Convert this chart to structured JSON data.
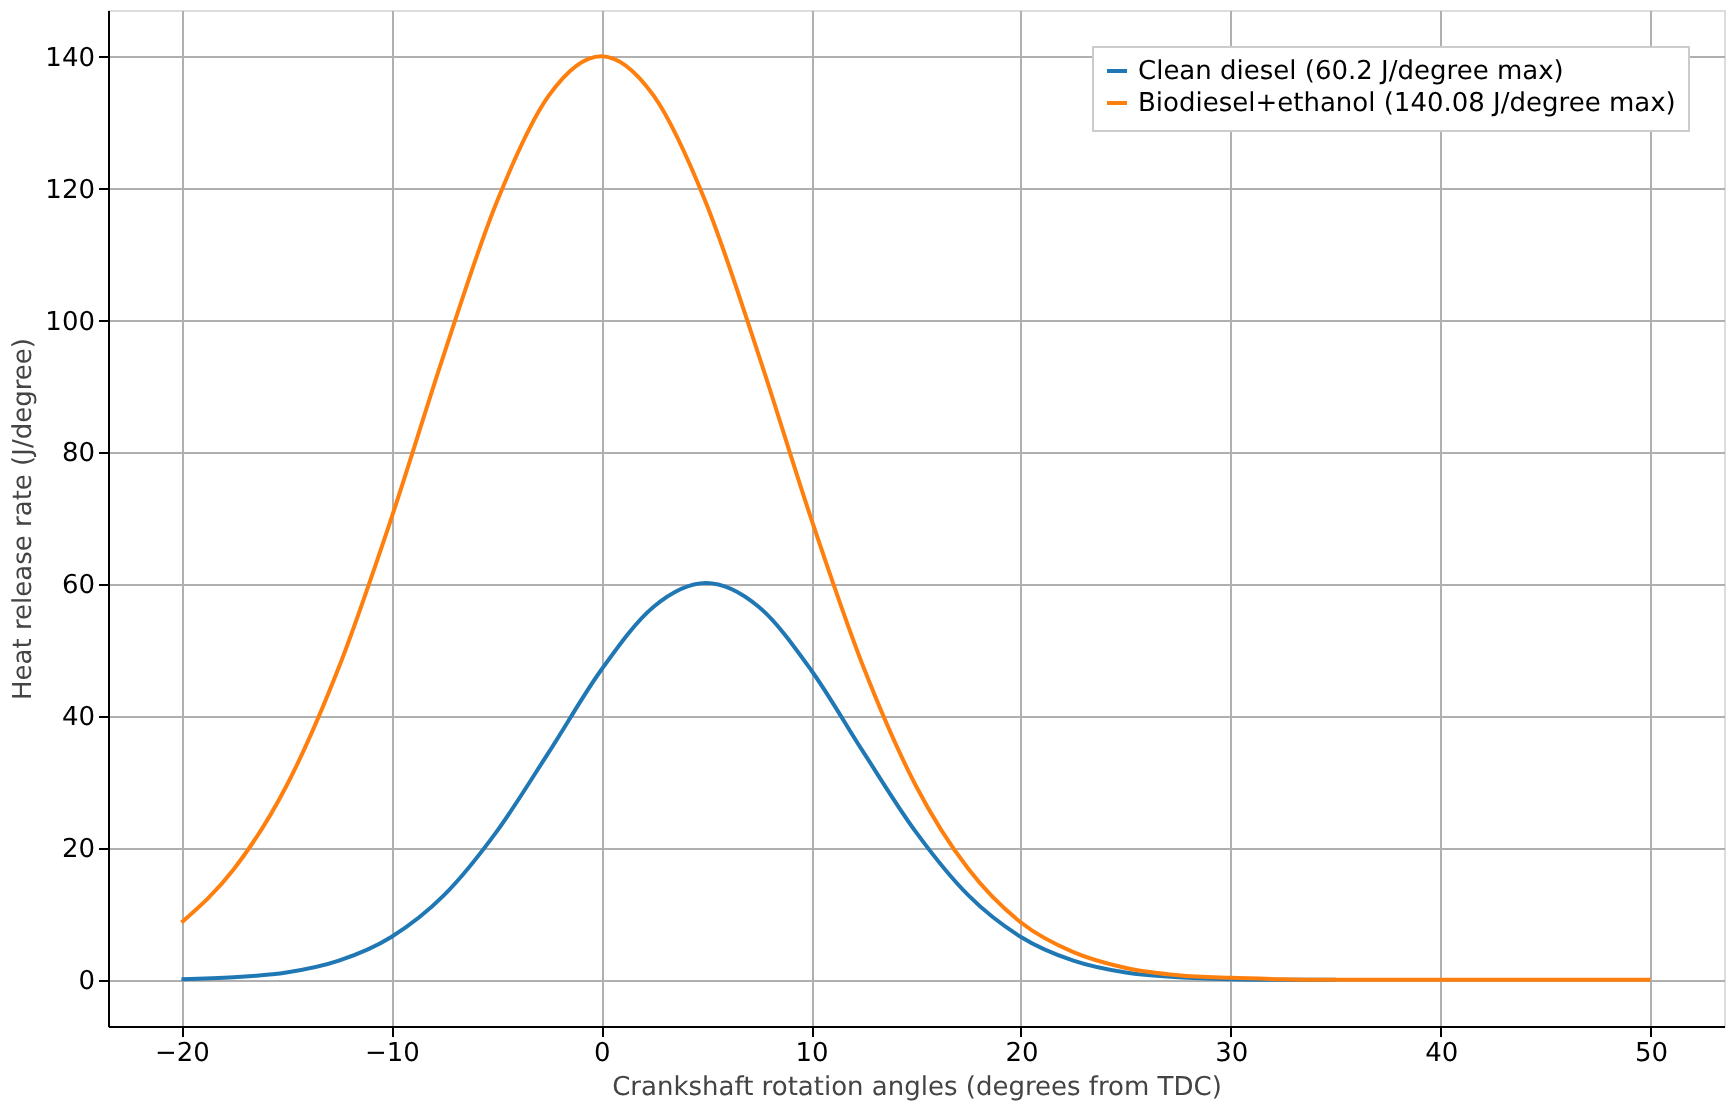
{
  "chart_data": {
    "type": "line",
    "xlabel": "Crankshaft rotation angles (degrees from TDC)",
    "ylabel": "Heat release rate (J/degree)",
    "x": [
      -20,
      -17.5,
      -15,
      -12.5,
      -10,
      -7.5,
      -5,
      -2.5,
      0,
      2.5,
      5,
      7.5,
      10,
      12.5,
      15,
      17.5,
      20,
      22.5,
      25,
      27.5,
      30,
      32.5,
      35,
      37.5,
      40,
      42.5,
      45,
      47.5,
      50
    ],
    "series": [
      {
        "name": "Clean diesel (60.2 J/degree max)",
        "color": "#1f77b4",
        "values": [
          0.1,
          0.4,
          1.1,
          2.9,
          6.5,
          12.8,
          22.4,
          34.5,
          47.0,
          56.6,
          60.2,
          56.6,
          47.0,
          34.5,
          22.4,
          12.8,
          6.5,
          2.9,
          1.1,
          0.4,
          0.1,
          0,
          0,
          null,
          null,
          null,
          null,
          null,
          null
        ]
      },
      {
        "name": "Biodiesel+ethanol (140.08 J/degree max)",
        "color": "#ff7f0e",
        "values": [
          8.7,
          16.8,
          29.4,
          47.4,
          70.0,
          94.8,
          117.8,
          134.1,
          140.1,
          134.1,
          117.8,
          94.8,
          70.0,
          47.4,
          29.4,
          16.8,
          8.7,
          4.2,
          1.8,
          0.7,
          0.3,
          0.1,
          0,
          0,
          0,
          0,
          0,
          0,
          0
        ]
      }
    ],
    "xlim": [
      -23.5,
      53.5
    ],
    "ylim": [
      -7,
      147.1
    ],
    "xticks": [
      -20,
      -10,
      0,
      10,
      20,
      30,
      40,
      50
    ],
    "yticks": [
      0,
      20,
      40,
      60,
      80,
      100,
      120,
      140
    ],
    "grid": true,
    "legend": "top right",
    "marker": "none",
    "line_style": "solid"
  }
}
